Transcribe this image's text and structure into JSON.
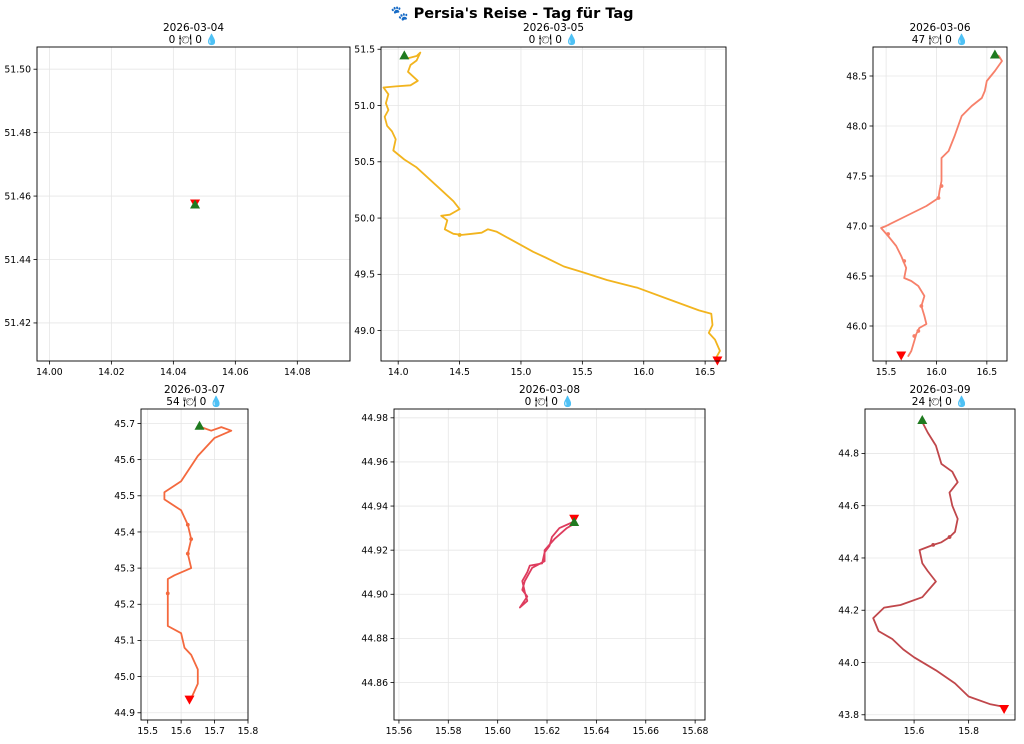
{
  "suptitle": "🐾 Persia's Reise - Tag für Tag",
  "colors": {
    "start": "#1f7a1f",
    "end": "#ff0000"
  },
  "chart_data": [
    {
      "type": "line",
      "title": "2026-03-04",
      "subtitle": "0 🍽 0 💧",
      "xlim": [
        13.996,
        14.097
      ],
      "ylim": [
        51.408,
        51.507
      ],
      "xticks": [
        14.0,
        14.02,
        14.04,
        14.06,
        14.08
      ],
      "yticks": [
        51.42,
        51.44,
        51.46,
        51.48,
        51.5
      ],
      "xfmt": 2,
      "yfmt": 2,
      "color": "#f2b41e",
      "points": [
        [
          14.047,
          51.4575
        ]
      ],
      "dots": [],
      "start": [
        14.047,
        51.4575
      ],
      "end": [
        14.047,
        51.4575
      ]
    },
    {
      "type": "line",
      "title": "2026-03-05",
      "subtitle": "0 🍽 0 💧",
      "xlim": [
        13.86,
        16.67
      ],
      "ylim": [
        48.73,
        51.52
      ],
      "xticks": [
        14.0,
        14.5,
        15.0,
        15.5,
        16.0,
        16.5
      ],
      "yticks": [
        49.0,
        49.5,
        50.0,
        50.5,
        51.0,
        51.5
      ],
      "xfmt": 1,
      "yfmt": 1,
      "color": "#f2b41e",
      "points": [
        [
          14.05,
          51.44
        ],
        [
          14.08,
          51.42
        ],
        [
          14.15,
          51.44
        ],
        [
          14.18,
          51.47
        ],
        [
          14.15,
          51.4
        ],
        [
          14.1,
          51.36
        ],
        [
          14.08,
          51.3
        ],
        [
          14.12,
          51.26
        ],
        [
          14.16,
          51.22
        ],
        [
          14.1,
          51.18
        ],
        [
          13.98,
          51.17
        ],
        [
          13.88,
          51.16
        ],
        [
          13.92,
          51.1
        ],
        [
          13.9,
          51.02
        ],
        [
          13.92,
          50.96
        ],
        [
          13.89,
          50.9
        ],
        [
          13.91,
          50.82
        ],
        [
          13.95,
          50.77
        ],
        [
          13.98,
          50.7
        ],
        [
          13.96,
          50.6
        ],
        [
          14.05,
          50.52
        ],
        [
          14.15,
          50.45
        ],
        [
          14.25,
          50.35
        ],
        [
          14.35,
          50.25
        ],
        [
          14.45,
          50.15
        ],
        [
          14.5,
          50.08
        ],
        [
          14.42,
          50.03
        ],
        [
          14.35,
          50.02
        ],
        [
          14.4,
          49.98
        ],
        [
          14.38,
          49.9
        ],
        [
          14.45,
          49.86
        ],
        [
          14.52,
          49.85
        ],
        [
          14.6,
          49.86
        ],
        [
          14.68,
          49.87
        ],
        [
          14.73,
          49.9
        ],
        [
          14.8,
          49.88
        ],
        [
          14.9,
          49.82
        ],
        [
          15.0,
          49.76
        ],
        [
          15.1,
          49.7
        ],
        [
          15.2,
          49.65
        ],
        [
          15.35,
          49.57
        ],
        [
          15.5,
          49.52
        ],
        [
          15.7,
          49.45
        ],
        [
          15.95,
          49.38
        ],
        [
          16.2,
          49.28
        ],
        [
          16.45,
          49.18
        ],
        [
          16.55,
          49.15
        ],
        [
          16.56,
          49.05
        ],
        [
          16.53,
          48.98
        ],
        [
          16.58,
          48.92
        ],
        [
          16.62,
          48.82
        ],
        [
          16.59,
          48.76
        ]
      ],
      "dots": [
        [
          14.5,
          49.85
        ]
      ],
      "start": [
        14.05,
        51.45
      ],
      "end": [
        16.6,
        48.73
      ]
    },
    {
      "type": "line",
      "title": "2026-03-06",
      "subtitle": "47 🍽 0 💧",
      "xlim": [
        15.37,
        16.7
      ],
      "ylim": [
        45.65,
        48.79
      ],
      "xticks": [
        15.5,
        16.0,
        16.5
      ],
      "yticks": [
        46.0,
        46.5,
        47.0,
        47.5,
        48.0,
        48.5
      ],
      "xfmt": 1,
      "yfmt": 1,
      "color": "#f7806a",
      "points": [
        [
          16.58,
          48.72
        ],
        [
          16.62,
          48.7
        ],
        [
          16.65,
          48.65
        ],
        [
          16.58,
          48.55
        ],
        [
          16.5,
          48.45
        ],
        [
          16.48,
          48.35
        ],
        [
          16.45,
          48.28
        ],
        [
          16.35,
          48.2
        ],
        [
          16.25,
          48.1
        ],
        [
          16.18,
          47.9
        ],
        [
          16.12,
          47.75
        ],
        [
          16.05,
          47.68
        ],
        [
          16.05,
          47.55
        ],
        [
          16.05,
          47.45
        ],
        [
          16.03,
          47.35
        ],
        [
          16.02,
          47.28
        ],
        [
          15.9,
          47.2
        ],
        [
          15.7,
          47.1
        ],
        [
          15.5,
          47.0
        ],
        [
          15.45,
          46.98
        ],
        [
          15.52,
          46.9
        ],
        [
          15.6,
          46.8
        ],
        [
          15.65,
          46.7
        ],
        [
          15.7,
          46.58
        ],
        [
          15.68,
          46.48
        ],
        [
          15.75,
          46.45
        ],
        [
          15.82,
          46.4
        ],
        [
          15.88,
          46.3
        ],
        [
          15.85,
          46.2
        ],
        [
          15.88,
          46.1
        ],
        [
          15.9,
          46.02
        ],
        [
          15.83,
          45.98
        ],
        [
          15.8,
          45.92
        ],
        [
          15.78,
          45.85
        ],
        [
          15.75,
          45.75
        ],
        [
          15.72,
          45.7
        ]
      ],
      "dots": [
        [
          16.02,
          47.28
        ],
        [
          16.05,
          47.4
        ],
        [
          15.52,
          46.92
        ],
        [
          15.68,
          46.65
        ],
        [
          15.85,
          46.2
        ],
        [
          15.82,
          45.95
        ],
        [
          15.78,
          45.9
        ]
      ],
      "start": [
        16.58,
        48.72
      ],
      "end": [
        15.65,
        45.7
      ]
    },
    {
      "type": "line",
      "title": "2026-03-07",
      "subtitle": "54 🍽 0 💧",
      "xlim": [
        15.48,
        15.8
      ],
      "ylim": [
        44.88,
        45.74
      ],
      "xticks": [
        15.5,
        15.6,
        15.7,
        15.8
      ],
      "yticks": [
        44.9,
        45.0,
        45.1,
        45.2,
        45.3,
        45.4,
        45.5,
        45.6,
        45.7
      ],
      "xfmt": 1,
      "yfmt": 1,
      "color": "#f4693e",
      "points": [
        [
          15.66,
          45.69
        ],
        [
          15.69,
          45.68
        ],
        [
          15.72,
          45.69
        ],
        [
          15.75,
          45.68
        ],
        [
          15.7,
          45.66
        ],
        [
          15.65,
          45.61
        ],
        [
          15.6,
          45.54
        ],
        [
          15.55,
          45.51
        ],
        [
          15.55,
          45.49
        ],
        [
          15.6,
          45.46
        ],
        [
          15.62,
          45.42
        ],
        [
          15.63,
          45.38
        ],
        [
          15.62,
          45.34
        ],
        [
          15.63,
          45.3
        ],
        [
          15.58,
          45.28
        ],
        [
          15.56,
          45.27
        ],
        [
          15.56,
          45.2
        ],
        [
          15.56,
          45.14
        ],
        [
          15.6,
          45.12
        ],
        [
          15.61,
          45.08
        ],
        [
          15.63,
          45.06
        ],
        [
          15.65,
          45.02
        ],
        [
          15.65,
          44.98
        ],
        [
          15.64,
          44.96
        ],
        [
          15.63,
          44.94
        ]
      ],
      "dots": [
        [
          15.62,
          45.42
        ],
        [
          15.63,
          45.38
        ],
        [
          15.62,
          45.34
        ],
        [
          15.56,
          45.23
        ]
      ],
      "start": [
        15.655,
        45.695
      ],
      "end": [
        15.625,
        44.935
      ]
    },
    {
      "type": "line",
      "title": "2026-03-08",
      "subtitle": "0 🍽 0 💧",
      "xlim": [
        15.558,
        15.684
      ],
      "ylim": [
        44.843,
        44.984
      ],
      "xticks": [
        15.56,
        15.58,
        15.6,
        15.62,
        15.64,
        15.66,
        15.68
      ],
      "yticks": [
        44.86,
        44.88,
        44.9,
        44.92,
        44.94,
        44.96,
        44.98
      ],
      "xfmt": 2,
      "yfmt": 2,
      "color": "#de3c5e",
      "points": [
        [
          15.631,
          44.933
        ],
        [
          15.625,
          44.93
        ],
        [
          15.622,
          44.926
        ],
        [
          15.621,
          44.922
        ],
        [
          15.619,
          44.919
        ],
        [
          15.618,
          44.914
        ],
        [
          15.613,
          44.913
        ],
        [
          15.612,
          44.91
        ],
        [
          15.61,
          44.906
        ],
        [
          15.611,
          44.901
        ],
        [
          15.612,
          44.897
        ],
        [
          15.609,
          44.894
        ],
        [
          15.612,
          44.899
        ],
        [
          15.61,
          44.902
        ],
        [
          15.611,
          44.906
        ],
        [
          15.614,
          44.912
        ],
        [
          15.619,
          44.915
        ],
        [
          15.619,
          44.92
        ],
        [
          15.623,
          44.925
        ],
        [
          15.628,
          44.93
        ],
        [
          15.631,
          44.932
        ]
      ],
      "dots": [],
      "start": [
        15.631,
        44.933
      ],
      "end": [
        15.631,
        44.934
      ]
    },
    {
      "type": "line",
      "title": "2026-03-09",
      "subtitle": "24 🍽 0 💧",
      "xlim": [
        15.42,
        15.97
      ],
      "ylim": [
        43.78,
        44.97
      ],
      "xticks": [
        15.4,
        15.6,
        15.8
      ],
      "yticks": [
        43.8,
        44.0,
        44.2,
        44.4,
        44.6,
        44.8
      ],
      "xfmt": 1,
      "yfmt": 1,
      "color": "#c0474b",
      "points": [
        [
          15.63,
          44.92
        ],
        [
          15.65,
          44.88
        ],
        [
          15.68,
          44.83
        ],
        [
          15.7,
          44.76
        ],
        [
          15.74,
          44.73
        ],
        [
          15.76,
          44.69
        ],
        [
          15.73,
          44.65
        ],
        [
          15.74,
          44.6
        ],
        [
          15.76,
          44.55
        ],
        [
          15.75,
          44.5
        ],
        [
          15.73,
          44.48
        ],
        [
          15.7,
          44.46
        ],
        [
          15.67,
          44.45
        ],
        [
          15.62,
          44.43
        ],
        [
          15.63,
          44.38
        ],
        [
          15.65,
          44.35
        ],
        [
          15.68,
          44.31
        ],
        [
          15.63,
          44.25
        ],
        [
          15.55,
          44.22
        ],
        [
          15.49,
          44.21
        ],
        [
          15.45,
          44.17
        ],
        [
          15.47,
          44.12
        ],
        [
          15.52,
          44.09
        ],
        [
          15.56,
          44.05
        ],
        [
          15.6,
          44.02
        ],
        [
          15.68,
          43.97
        ],
        [
          15.75,
          43.92
        ],
        [
          15.8,
          43.87
        ],
        [
          15.88,
          43.84
        ],
        [
          15.93,
          43.83
        ]
      ],
      "dots": [
        [
          15.73,
          44.48
        ],
        [
          15.67,
          44.45
        ]
      ],
      "start": [
        15.63,
        44.93
      ],
      "end": [
        15.93,
        43.82
      ]
    }
  ]
}
